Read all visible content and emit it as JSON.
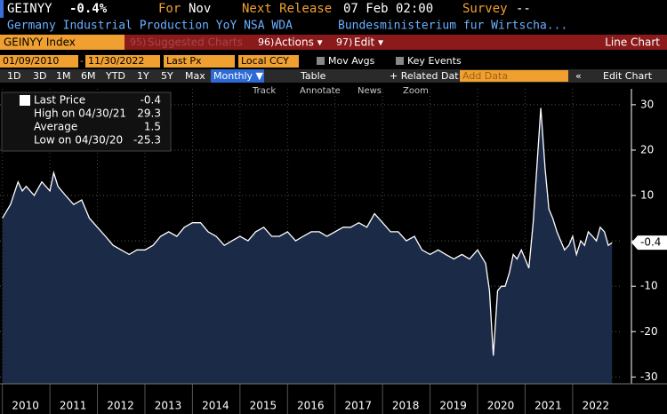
{
  "ui": {
    "ticker": "GEINYY",
    "change": "-0.4%",
    "for_label": "For",
    "for_value": "Nov",
    "release_label": "Next Release",
    "release_value": "07 Feb 02:00",
    "survey_label": "Survey",
    "survey_value": "--",
    "description": "Germany Industrial Production YoY NSA WDA",
    "source": "Bundesministerium fur Wirtscha...",
    "security": "GEINYY Index",
    "suggested": "Suggested Charts",
    "actions": "Actions ▾",
    "edit": "Edit ▾",
    "chart_kind": "Line Chart",
    "actions_num": "96)",
    "edit_num": "97)",
    "suggested_num": "95)",
    "start_date": "01/09/2010",
    "end_date": "11/30/2022",
    "field": "Last Px",
    "currency": "Local CCY",
    "mov_avgs": "Mov Avgs",
    "key_events": "Key Events",
    "periods": [
      "1D",
      "3D",
      "1M",
      "6M",
      "YTD",
      "1Y",
      "5Y",
      "Max"
    ],
    "frequency": "Monthly ▼",
    "table": "Table",
    "related": "+ Related Dat",
    "add_data": "Add Data",
    "edit_chart": "Edit Chart",
    "tools": [
      "Track",
      "Annotate",
      "News",
      "Zoom"
    ]
  },
  "chart_data": {
    "type": "area",
    "legend": [
      {
        "label": "Last Price",
        "value": -0.4
      },
      {
        "label": "High on 04/30/21",
        "value": 29.3
      },
      {
        "label": "Average",
        "value": 1.5
      },
      {
        "label": "Low on 04/30/20",
        "value": -25.3
      }
    ],
    "series": [
      {
        "name": "Last Price",
        "color": "#ffffff",
        "fill": "#1b2b47",
        "x": [
          2010.0,
          2010.17,
          2010.33,
          2010.42,
          2010.5,
          2010.67,
          2010.83,
          2011.0,
          2011.08,
          2011.17,
          2011.33,
          2011.5,
          2011.67,
          2011.83,
          2012.0,
          2012.17,
          2012.33,
          2012.5,
          2012.67,
          2012.83,
          2013.0,
          2013.17,
          2013.33,
          2013.5,
          2013.67,
          2013.83,
          2014.0,
          2014.17,
          2014.33,
          2014.5,
          2014.67,
          2014.83,
          2015.0,
          2015.17,
          2015.33,
          2015.5,
          2015.67,
          2015.83,
          2016.0,
          2016.17,
          2016.33,
          2016.5,
          2016.67,
          2016.83,
          2017.0,
          2017.17,
          2017.33,
          2017.5,
          2017.67,
          2017.83,
          2018.0,
          2018.17,
          2018.33,
          2018.5,
          2018.67,
          2018.83,
          2019.0,
          2019.17,
          2019.33,
          2019.5,
          2019.67,
          2019.83,
          2020.0,
          2020.17,
          2020.25,
          2020.33,
          2020.42,
          2020.5,
          2020.58,
          2020.67,
          2020.75,
          2020.83,
          2020.92,
          2021.0,
          2021.08,
          2021.17,
          2021.33,
          2021.42,
          2021.5,
          2021.58,
          2021.67,
          2021.75,
          2021.83,
          2021.92,
          2022.0,
          2022.08,
          2022.17,
          2022.25,
          2022.33,
          2022.42,
          2022.5,
          2022.58,
          2022.67,
          2022.75,
          2022.83
        ],
        "values": [
          5,
          8,
          13,
          11,
          12,
          10,
          13,
          11,
          15,
          12,
          10,
          8,
          9,
          5,
          3,
          1,
          -1,
          -2,
          -3,
          -2,
          -2,
          -1,
          1,
          2,
          1,
          3,
          4,
          4,
          2,
          1,
          -1,
          0,
          1,
          0,
          2,
          3,
          1,
          1,
          2,
          0,
          1,
          2,
          2,
          1,
          2,
          3,
          3,
          4,
          3,
          6,
          4,
          2,
          2,
          0,
          1,
          -2,
          -3,
          -2,
          -3,
          -4,
          -3,
          -4,
          -2,
          -5,
          -11,
          -25.3,
          -11,
          -10,
          -10,
          -7,
          -3,
          -4,
          -2,
          -4,
          -6,
          4,
          29.3,
          16,
          7,
          5,
          2,
          0,
          -2,
          -1,
          1,
          -3,
          0,
          -1,
          2,
          1,
          0,
          3,
          2,
          -1,
          -0.4
        ]
      }
    ],
    "xlim": [
      2009.95,
      2023.05
    ],
    "xticks": [
      2010,
      2011,
      2012,
      2013,
      2014,
      2015,
      2016,
      2017,
      2018,
      2019,
      2020,
      2021,
      2022
    ],
    "ylim": [
      -31.5,
      33.5
    ],
    "yticks": [
      -30,
      -20,
      -10,
      0,
      10,
      20,
      30
    ],
    "grid": true
  }
}
